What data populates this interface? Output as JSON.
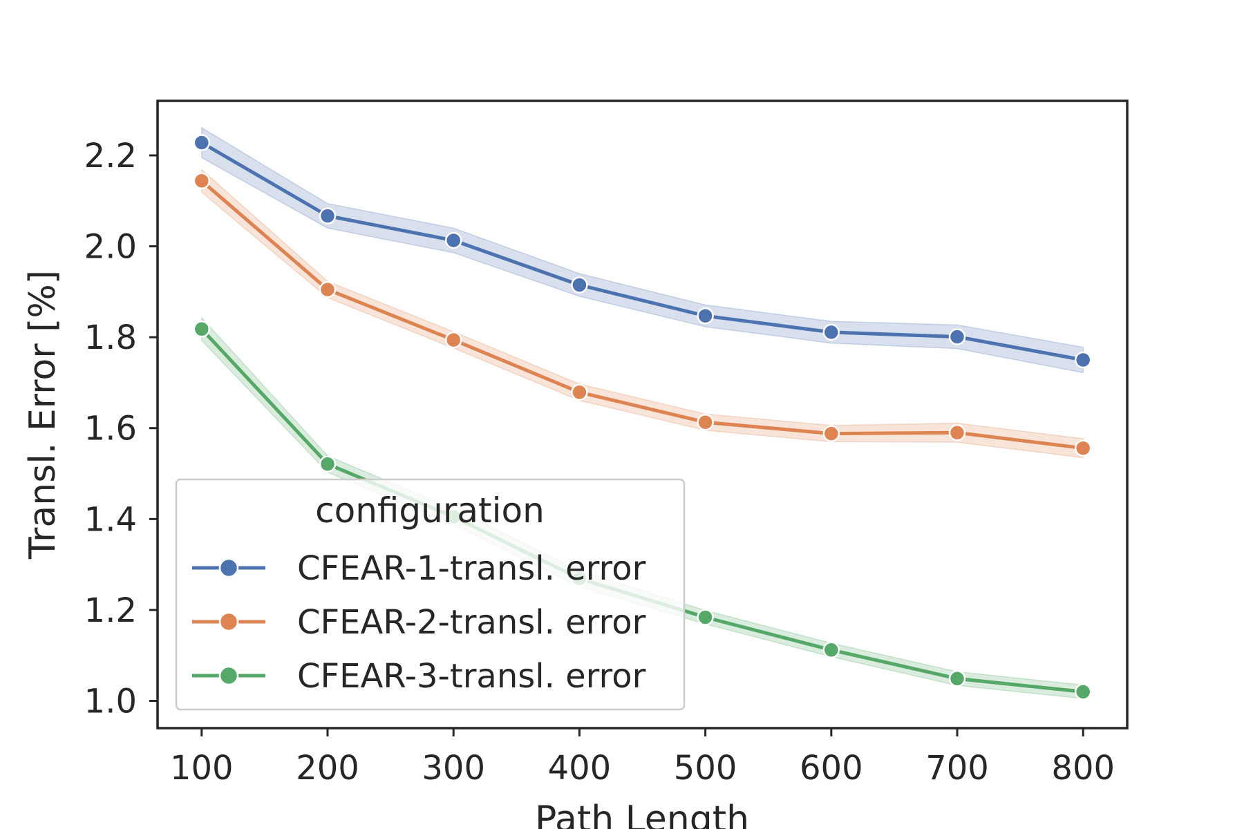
{
  "chart_data": {
    "type": "line",
    "title": "",
    "xlabel": "Path Length",
    "ylabel": "Transl. Error [%]",
    "xlim": [
      65,
      835
    ],
    "ylim": [
      0.94,
      2.32
    ],
    "x": [
      100,
      200,
      300,
      400,
      500,
      600,
      700,
      800
    ],
    "x_ticks": [
      100,
      200,
      300,
      400,
      500,
      600,
      700,
      800
    ],
    "y_ticks": [
      1.0,
      1.2,
      1.4,
      1.6,
      1.8,
      2.0,
      2.2
    ],
    "y_tick_labels": [
      "1.0",
      "1.2",
      "1.4",
      "1.6",
      "1.8",
      "2.0",
      "2.2"
    ],
    "grid": false,
    "legend": {
      "title": "configuration",
      "placement": "lower-left"
    },
    "series": [
      {
        "name": "CFEAR-1-transl. error",
        "color": "#4c72b0",
        "values": [
          2.228,
          2.067,
          2.013,
          1.915,
          1.847,
          1.811,
          1.801,
          1.75
        ],
        "ci_half_width": [
          0.033,
          0.027,
          0.027,
          0.025,
          0.024,
          0.024,
          0.026,
          0.028
        ]
      },
      {
        "name": "CFEAR-2-transl. error",
        "color": "#dd8452",
        "values": [
          2.144,
          1.905,
          1.794,
          1.679,
          1.613,
          1.588,
          1.59,
          1.556
        ],
        "ci_half_width": [
          0.025,
          0.018,
          0.018,
          0.018,
          0.018,
          0.018,
          0.021,
          0.021
        ]
      },
      {
        "name": "CFEAR-3-transl. error",
        "color": "#55a868",
        "values": [
          1.818,
          1.521,
          1.405,
          1.269,
          1.184,
          1.112,
          1.049,
          1.02
        ],
        "ci_half_width": [
          0.025,
          0.018,
          0.018,
          0.018,
          0.015,
          0.015,
          0.015,
          0.015
        ]
      }
    ]
  }
}
